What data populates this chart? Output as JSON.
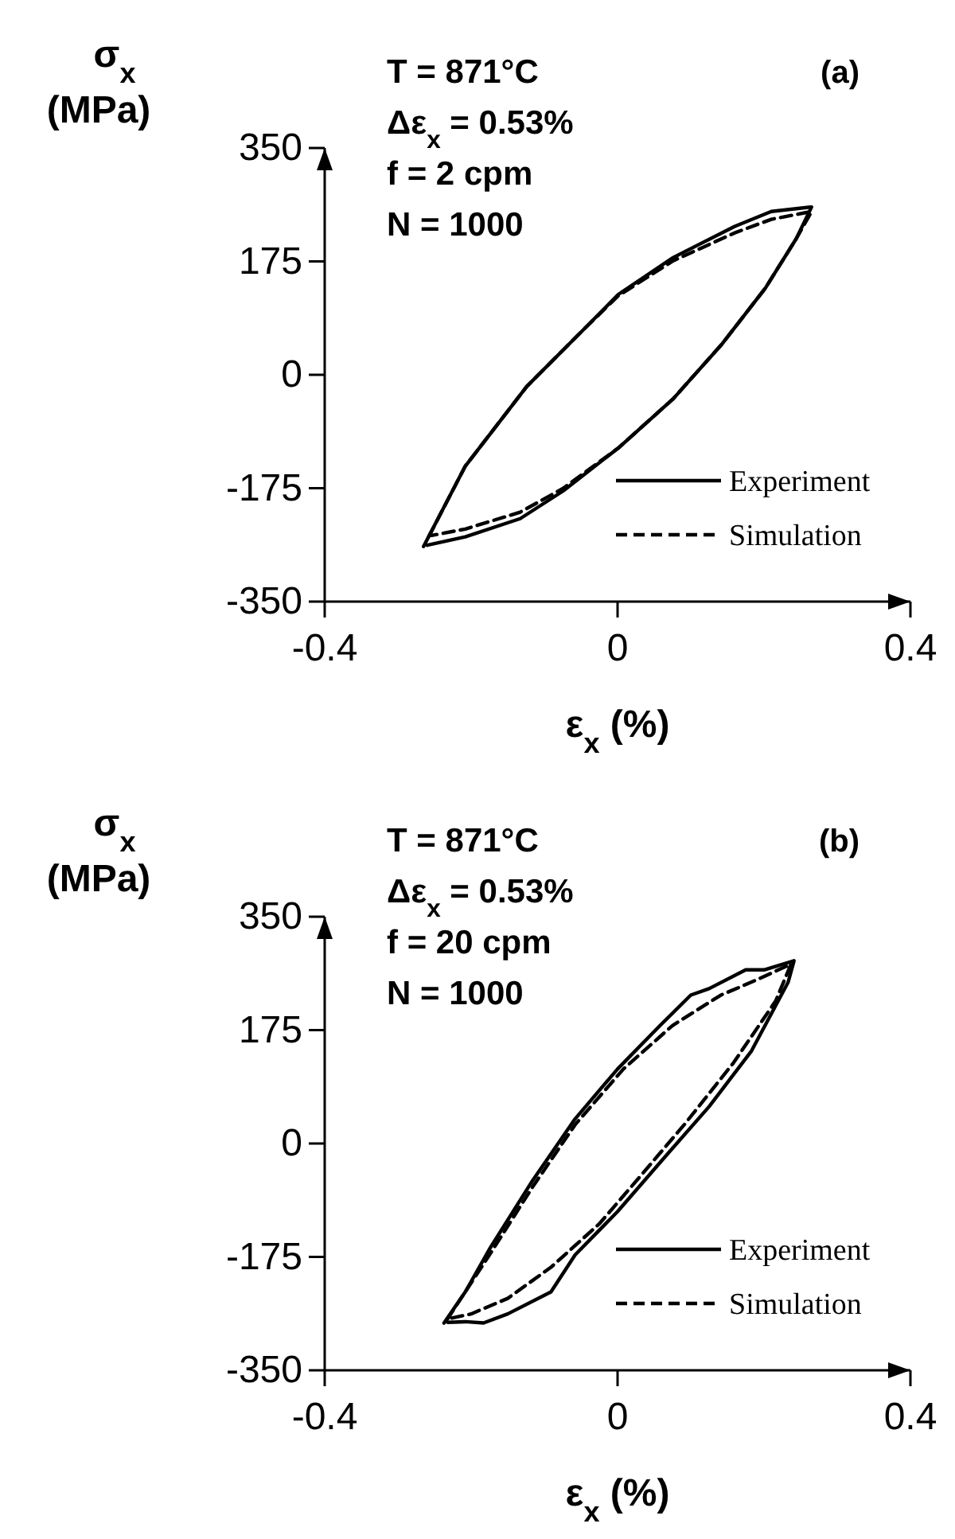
{
  "chart_data": [
    {
      "type": "line",
      "xlabel": "ε$_{x}$ (%)",
      "ylabel": "σ$_{x}$ (MPa)",
      "xlim": [
        -0.4,
        0.4
      ],
      "xticks": [
        -0.4,
        0,
        0.4
      ],
      "ylim": [
        -350,
        350
      ],
      "yticks": [
        -350,
        -175,
        0,
        175,
        350
      ],
      "legend": "bottom right",
      "grid": false,
      "annotations": [
        "T = 871°C",
        "Δε$_{x}$ = 0.53%",
        "f = 2 cpm",
        "N = 1000",
        "(a)"
      ],
      "series": [
        {
          "name": "Experiment",
          "color": "#000000",
          "line_style": "solid",
          "x": [
            -0.265,
            -0.208,
            -0.124,
            -0.049,
            0.001,
            0.076,
            0.16,
            0.21,
            0.265,
            0.244,
            0.202,
            0.143,
            0.076,
            0.001,
            -0.074,
            -0.133,
            -0.208,
            -0.26
          ],
          "values": [
            -265,
            -141,
            -18,
            67,
            124,
            181,
            229,
            252,
            259,
            210,
            134,
            48,
            -37,
            -113,
            -179,
            -222,
            -250,
            -263
          ]
        },
        {
          "name": "Simulation",
          "color": "#000000",
          "line_style": "dashed",
          "x": [
            -0.258,
            -0.208,
            -0.124,
            -0.049,
            0.001,
            0.076,
            0.16,
            0.21,
            0.265,
            0.244,
            0.202,
            0.143,
            0.076,
            0.001,
            -0.074,
            -0.133,
            -0.208,
            -0.254
          ],
          "values": [
            -250,
            -141,
            -18,
            67,
            122,
            176,
            219,
            240,
            252,
            210,
            134,
            48,
            -37,
            -113,
            -175,
            -212,
            -238,
            -248
          ]
        }
      ]
    },
    {
      "type": "line",
      "xlabel": "ε$_{x}$ (%)",
      "ylabel": "σ$_{x}$ (MPa)",
      "xlim": [
        -0.4,
        0.4
      ],
      "xticks": [
        -0.4,
        0,
        0.4
      ],
      "ylim": [
        -350,
        350
      ],
      "yticks": [
        -350,
        -175,
        0,
        175,
        350
      ],
      "legend": "bottom right",
      "grid": false,
      "annotations": [
        "T = 871°C",
        "Δε$_{x}$ = 0.53%",
        "f = 20 cpm",
        "N = 1000",
        "(b)"
      ],
      "series": [
        {
          "name": "Experiment",
          "color": "#000000",
          "line_style": "solid",
          "x": [
            -0.237,
            -0.208,
            -0.175,
            -0.116,
            -0.058,
            0,
            0.058,
            0.1,
            0.125,
            0.175,
            0.2,
            0.241,
            0.233,
            0.183,
            0.125,
            0.066,
            0,
            -0.058,
            -0.091,
            -0.15,
            -0.183,
            -0.208,
            -0.232
          ],
          "values": [
            -277,
            -229,
            -163,
            -57,
            38,
            115,
            182,
            229,
            239,
            268,
            268,
            282,
            249,
            143,
            57,
            -19,
            -105,
            -172,
            -229,
            -263,
            -277,
            -275,
            -276
          ]
        },
        {
          "name": "Simulation",
          "color": "#000000",
          "line_style": "dashed",
          "x": [
            -0.233,
            -0.175,
            -0.116,
            -0.058,
            0.008,
            0.075,
            0.141,
            0.191,
            0.237,
            0.216,
            0.158,
            0.091,
            0.033,
            -0.025,
            -0.091,
            -0.15,
            -0.2,
            -0.229
          ],
          "values": [
            -272,
            -172,
            -67,
            29,
            115,
            182,
            229,
            253,
            277,
            220,
            124,
            29,
            -48,
            -124,
            -191,
            -239,
            -263,
            -270
          ]
        }
      ]
    }
  ]
}
